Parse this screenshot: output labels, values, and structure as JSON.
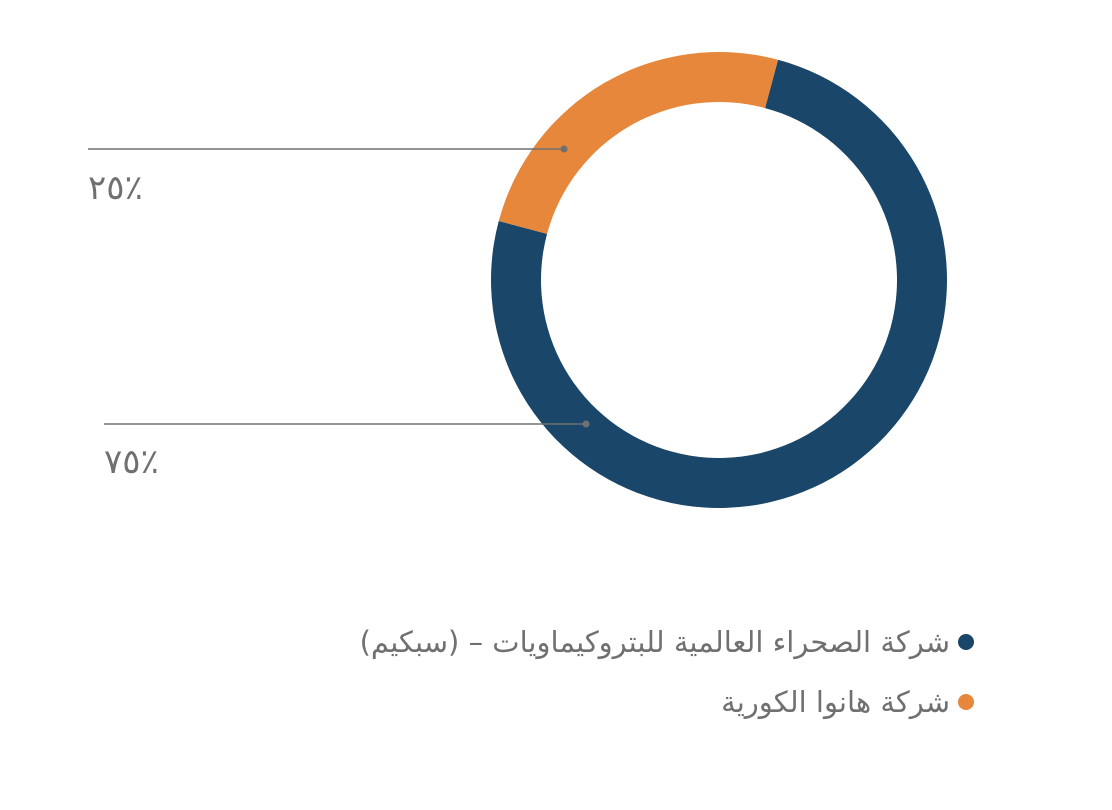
{
  "chart_data": {
    "type": "pie",
    "donut": true,
    "categories": [
      "شركة الصحراء العالمية للبتروكيماويات – (سبكيم)",
      "شركة هانوا الكورية"
    ],
    "values": [
      75,
      25
    ],
    "labels": [
      "٪٧٥",
      "٪٢٥"
    ],
    "colors": [
      "#1a4669",
      "#e6873b"
    ],
    "legend_position": "bottom"
  },
  "leader_color": "#707070"
}
